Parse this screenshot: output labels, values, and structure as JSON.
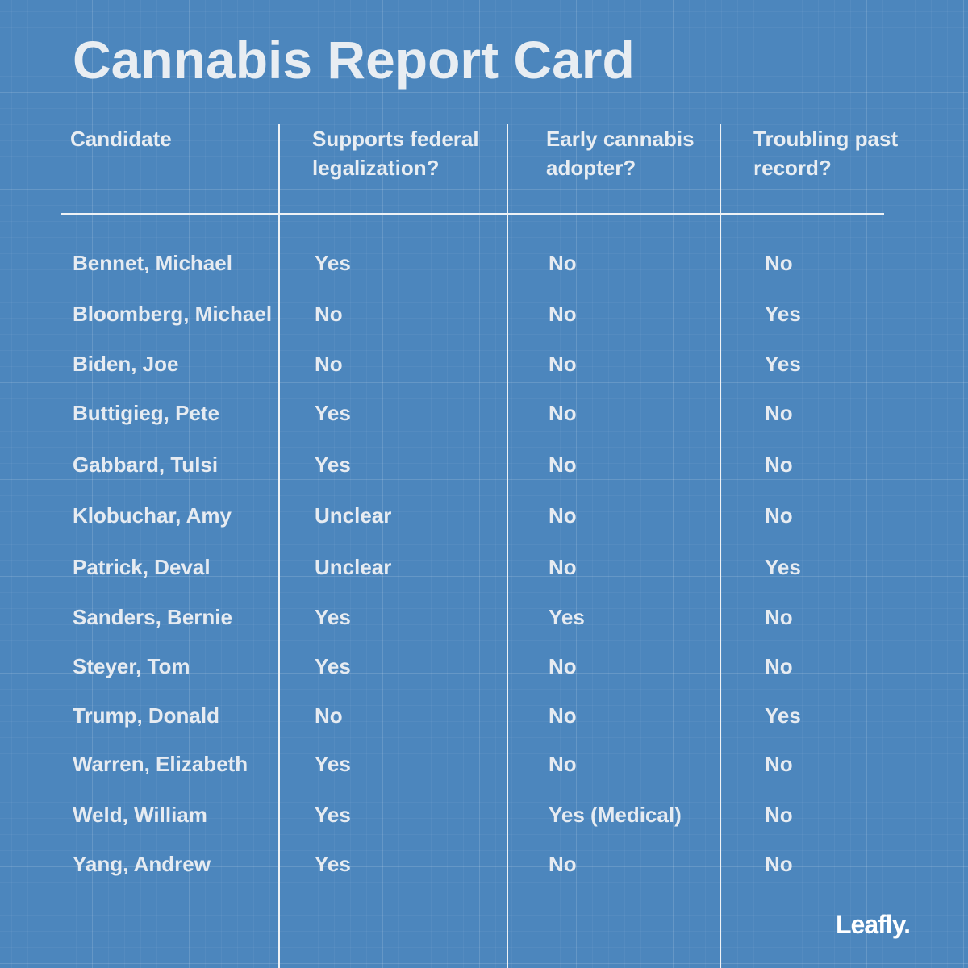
{
  "title": "Cannabis Report Card",
  "columns": [
    "Candidate",
    "Supports federal legalization?",
    "Early cannabis adopter?",
    "Troubling past record?"
  ],
  "rows": [
    {
      "candidate": "Bennet, Michael",
      "supports_federal_legalization": "Yes",
      "early_adopter": "No",
      "troubling_record": "No"
    },
    {
      "candidate": "Bloomberg, Michael",
      "supports_federal_legalization": "No",
      "early_adopter": "No",
      "troubling_record": "Yes"
    },
    {
      "candidate": "Biden, Joe",
      "supports_federal_legalization": "No",
      "early_adopter": "No",
      "troubling_record": "Yes"
    },
    {
      "candidate": "Buttigieg, Pete",
      "supports_federal_legalization": "Yes",
      "early_adopter": "No",
      "troubling_record": "No"
    },
    {
      "candidate": "Gabbard, Tulsi",
      "supports_federal_legalization": "Yes",
      "early_adopter": "No",
      "troubling_record": "No"
    },
    {
      "candidate": "Klobuchar, Amy",
      "supports_federal_legalization": "Unclear",
      "early_adopter": "No",
      "troubling_record": "No"
    },
    {
      "candidate": "Patrick, Deval",
      "supports_federal_legalization": "Unclear",
      "early_adopter": "No",
      "troubling_record": "Yes"
    },
    {
      "candidate": "Sanders, Bernie",
      "supports_federal_legalization": "Yes",
      "early_adopter": "Yes",
      "troubling_record": "No"
    },
    {
      "candidate": "Steyer, Tom",
      "supports_federal_legalization": "Yes",
      "early_adopter": "No",
      "troubling_record": "No"
    },
    {
      "candidate": "Trump, Donald",
      "supports_federal_legalization": "No",
      "early_adopter": "No",
      "troubling_record": "Yes"
    },
    {
      "candidate": "Warren, Elizabeth",
      "supports_federal_legalization": "Yes",
      "early_adopter": "No",
      "troubling_record": "No"
    },
    {
      "candidate": "Weld, William",
      "supports_federal_legalization": "Yes",
      "early_adopter": "Yes (Medical)",
      "troubling_record": "No"
    },
    {
      "candidate": "Yang, Andrew",
      "supports_federal_legalization": "Yes",
      "early_adopter": "No",
      "troubling_record": "No"
    }
  ],
  "logo": "Leafly.",
  "colors": {
    "background": "#4c86bd",
    "text": "#e6ebf1",
    "rules": "#eef2f6"
  }
}
